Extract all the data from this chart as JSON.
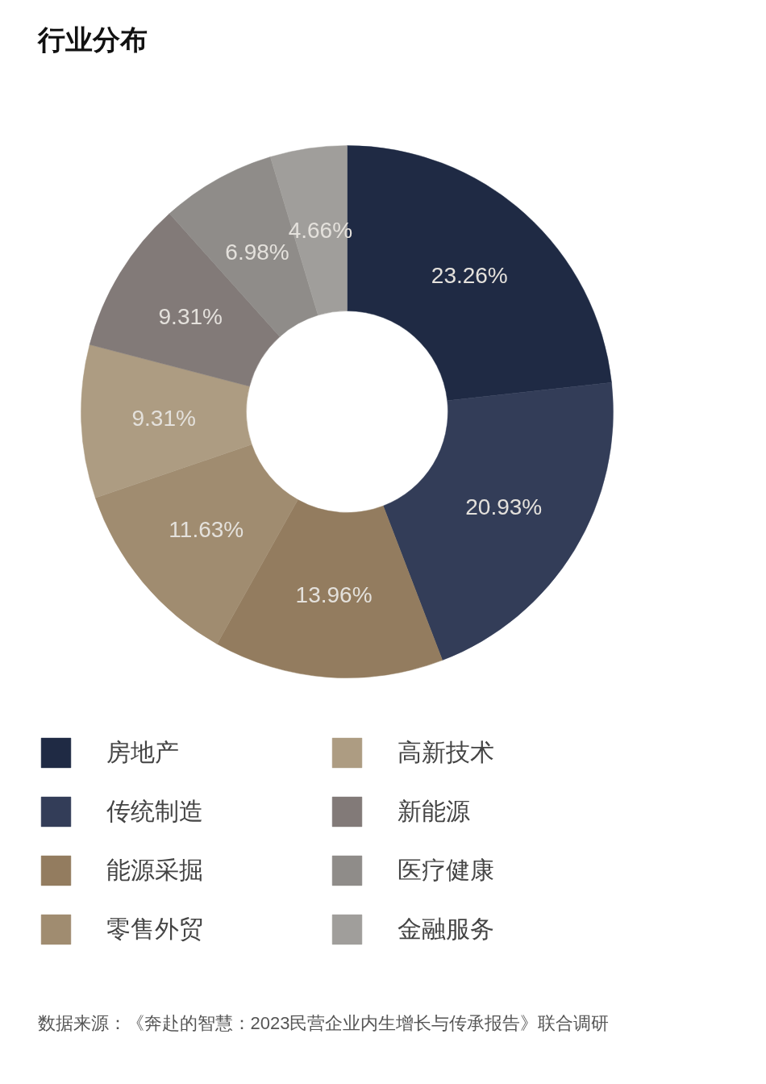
{
  "chart_data": {
    "type": "donut",
    "title": "行业分布",
    "categories": [
      "房地产",
      "传统制造",
      "能源采掘",
      "零售外贸",
      "高新技术",
      "新能源",
      "医疗健康",
      "金融服务"
    ],
    "values": [
      23.26,
      20.93,
      13.96,
      11.63,
      9.31,
      9.31,
      6.98,
      4.66
    ],
    "colors": [
      "#1f2a44",
      "#333d58",
      "#937c5f",
      "#a08c70",
      "#ad9c82",
      "#827a78",
      "#8f8c89",
      "#a09e9b"
    ],
    "value_labels": [
      "23.26%",
      "20.93%",
      "13.96%",
      "11.63%",
      "9.31%",
      "9.31%",
      "6.98%",
      "4.66%"
    ],
    "legend": "bottom",
    "annotations": [
      "数据来源：《奔赴的智慧：2023民营企业内生增长与传承报告》联合调研"
    ]
  }
}
